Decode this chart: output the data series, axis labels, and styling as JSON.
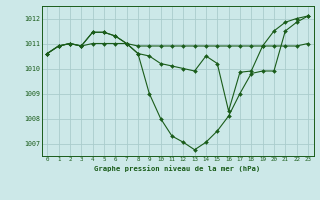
{
  "title": "Graphe pression niveau de la mer (hPa)",
  "background_color": "#cce8e8",
  "grid_color": "#aacccc",
  "line_color": "#1a5c1a",
  "xlim": [
    -0.5,
    23.5
  ],
  "ylim": [
    1006.5,
    1012.5
  ],
  "yticks": [
    1007,
    1008,
    1009,
    1010,
    1011,
    1012
  ],
  "xticks": [
    0,
    1,
    2,
    3,
    4,
    5,
    6,
    7,
    8,
    9,
    10,
    11,
    12,
    13,
    14,
    15,
    16,
    17,
    18,
    19,
    20,
    21,
    22,
    23
  ],
  "line1_x": [
    0,
    1,
    2,
    3,
    4,
    5,
    6,
    7,
    8,
    9,
    10,
    11,
    12,
    13,
    14,
    15,
    16,
    17,
    18,
    19,
    20,
    21,
    22,
    23
  ],
  "line1_y": [
    1010.6,
    1010.9,
    1011.0,
    1010.9,
    1011.0,
    1011.0,
    1011.0,
    1011.0,
    1010.9,
    1010.9,
    1010.9,
    1010.9,
    1010.9,
    1010.9,
    1010.9,
    1010.9,
    1010.9,
    1010.9,
    1010.9,
    1010.9,
    1010.9,
    1010.9,
    1010.9,
    1011.0
  ],
  "line2_x": [
    0,
    1,
    2,
    3,
    4,
    5,
    6,
    7,
    8,
    9,
    10,
    11,
    12,
    13,
    14,
    15,
    16,
    17,
    18,
    19,
    20,
    21,
    22,
    23
  ],
  "line2_y": [
    1010.6,
    1010.9,
    1011.0,
    1010.9,
    1011.45,
    1011.45,
    1011.3,
    1011.0,
    1010.6,
    1009.0,
    1008.0,
    1007.3,
    1007.05,
    1006.75,
    1007.05,
    1007.5,
    1008.1,
    1009.0,
    1009.8,
    1009.9,
    1009.9,
    1011.5,
    1011.85,
    1012.1
  ],
  "line3_x": [
    0,
    1,
    2,
    3,
    4,
    5,
    6,
    7,
    8,
    9,
    10,
    11,
    12,
    13,
    14,
    15,
    16,
    17,
    18,
    19,
    20,
    21,
    22,
    23
  ],
  "line3_y": [
    1010.6,
    1010.9,
    1011.0,
    1010.9,
    1011.45,
    1011.45,
    1011.3,
    1011.0,
    1010.6,
    1010.5,
    1010.2,
    1010.1,
    1010.0,
    1009.9,
    1010.5,
    1010.2,
    1008.3,
    1009.85,
    1009.9,
    1010.9,
    1011.5,
    1011.85,
    1012.0,
    1012.1
  ]
}
